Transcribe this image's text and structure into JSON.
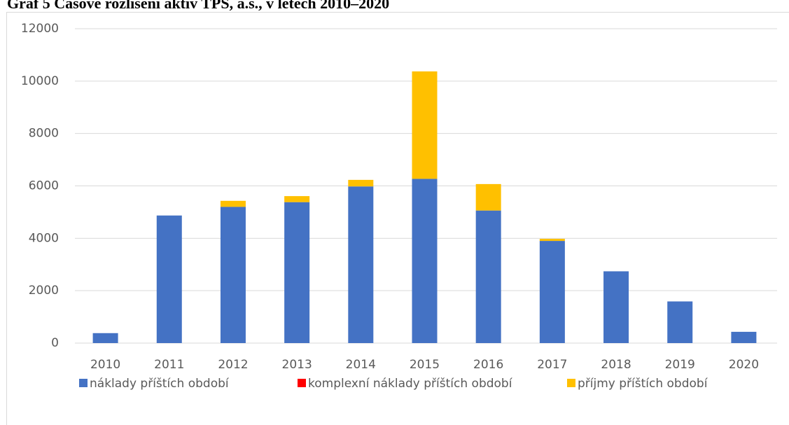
{
  "chart_data": {
    "type": "stacked_bar",
    "title": "Graf 5 Časové rozlišení aktiv TPS, a.s., v letech 2010–2020",
    "categories": [
      "2010",
      "2011",
      "2012",
      "2013",
      "2014",
      "2015",
      "2016",
      "2017",
      "2018",
      "2019",
      "2020"
    ],
    "series": [
      {
        "name": "náklady příštích období",
        "color": "#4472c4",
        "values": [
          380,
          4870,
          5200,
          5380,
          5980,
          6270,
          5060,
          3900,
          2740,
          1590,
          430
        ]
      },
      {
        "name": "komplexní náklady příštích období",
        "color": "#ff0000",
        "values": [
          0,
          0,
          0,
          0,
          0,
          0,
          0,
          0,
          0,
          0,
          0
        ]
      },
      {
        "name": "příjmy příštích období",
        "color": "#ffc000",
        "values": [
          0,
          0,
          230,
          230,
          250,
          4100,
          1010,
          80,
          0,
          0,
          0
        ]
      }
    ],
    "ylim": [
      0,
      12000
    ],
    "yticks": [
      0,
      2000,
      4000,
      6000,
      8000,
      10000,
      12000
    ],
    "grid": true,
    "legend": "bottom"
  }
}
